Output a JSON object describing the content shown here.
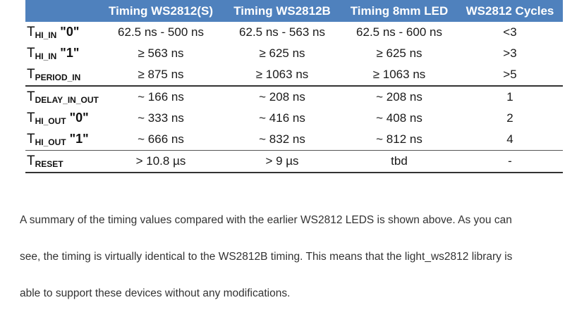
{
  "table": {
    "headers": [
      "",
      "Timing WS2812(S)",
      "Timing WS2812B",
      "Timing 8mm LED",
      "WS2812 Cycles"
    ],
    "rows": [
      {
        "label_main": "T",
        "label_sub": "HI_IN",
        "label_suffix": " \"0\"",
        "cells": [
          "62.5 ns - 500 ns",
          "62.5 ns - 563 ns",
          "62.5 ns - 600 ns",
          "<3"
        ]
      },
      {
        "label_main": "T",
        "label_sub": "HI_IN",
        "label_suffix": " \"1\"",
        "cells": [
          "≥ 563 ns",
          "≥ 625 ns",
          "≥ 625 ns",
          ">3"
        ]
      },
      {
        "label_main": "T",
        "label_sub": "PERIOD_IN",
        "label_suffix": "",
        "cells": [
          "≥ 875 ns",
          "≥ 1063 ns",
          "≥ 1063 ns",
          ">5"
        ]
      },
      {
        "label_main": "T",
        "label_sub": "DELAY_IN_OUT",
        "label_suffix": "",
        "cells": [
          "~ 166 ns",
          "~ 208 ns",
          "~ 208 ns",
          "1"
        ]
      },
      {
        "label_main": "T",
        "label_sub": "HI_OUT",
        "label_suffix": " \"0\"",
        "cells": [
          "~ 333 ns",
          "~ 416 ns",
          "~ 408 ns",
          "2"
        ]
      },
      {
        "label_main": "T",
        "label_sub": "HI_OUT",
        "label_suffix": " \"1\"",
        "cells": [
          "~ 666 ns",
          "~ 832 ns",
          "~ 812 ns",
          "4"
        ]
      },
      {
        "label_main": "T",
        "label_sub": "RESET",
        "label_suffix": "",
        "cells": [
          "> 10.8 µs",
          "> 9 µs",
          "tbd",
          "-"
        ]
      }
    ]
  },
  "paragraph": {
    "line1": "A summary of the timing values compared with the earlier WS2812 LEDS is shown above. As you can",
    "line2": "see, the timing is virtually identical to the WS2812B timing. This means that the light_ws2812 library is",
    "line3": "able to support these devices without any modifications."
  }
}
